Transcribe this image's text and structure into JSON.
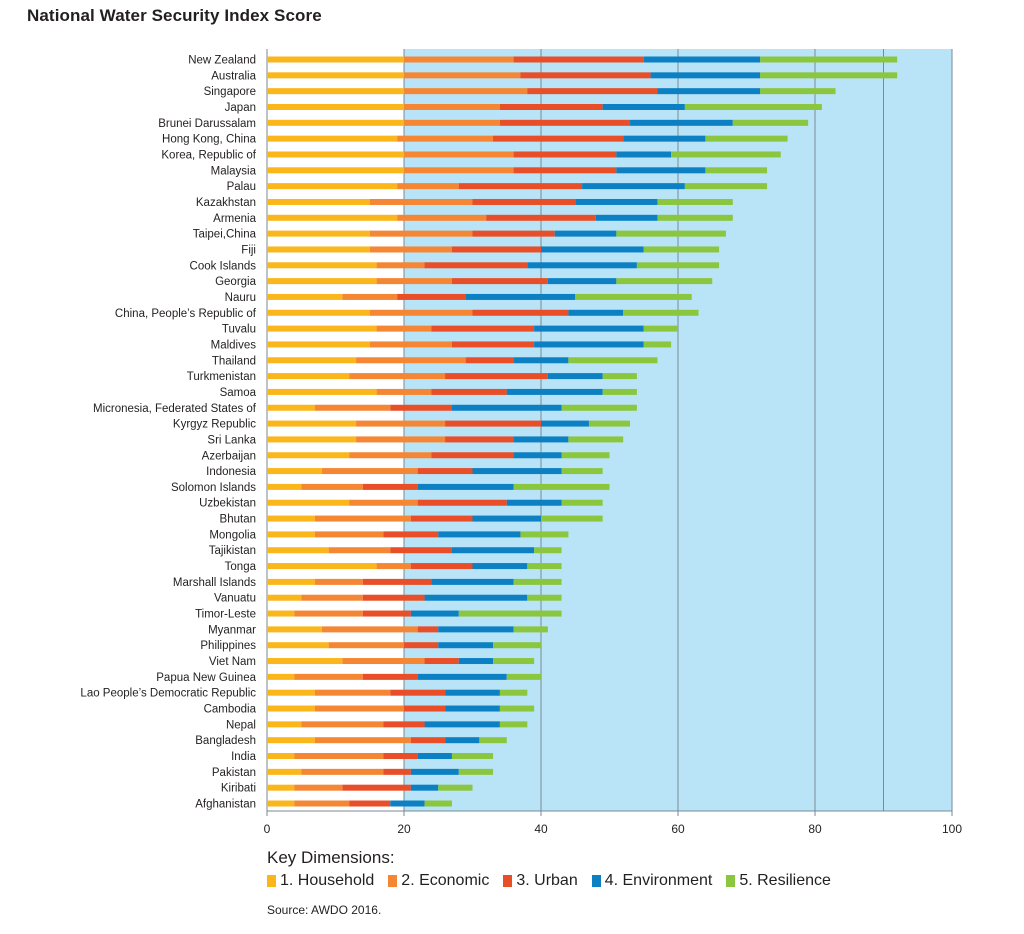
{
  "chart_data": {
    "type": "bar",
    "orientation": "horizontal",
    "stacked": true,
    "title": "National Water Security Index Score",
    "xlim": [
      0,
      100
    ],
    "x_ticks": [
      0,
      20,
      40,
      60,
      80,
      100
    ],
    "grid": true,
    "legend_title": "Key Dimensions:",
    "legend_position": "bottom",
    "source": "Source: AWDO 2016.",
    "colors": [
      "#fbb61b",
      "#f58634",
      "#e84e27",
      "#0d80c3",
      "#8bc63f"
    ],
    "plot_background": "#b9e4f7",
    "categories": [
      "New Zealand",
      "Australia",
      "Singapore",
      "Japan",
      "Brunei Darussalam",
      "Hong Kong, China",
      "Korea, Republic of",
      "Malaysia",
      "Palau",
      "Kazakhstan",
      "Armenia",
      "Taipei,China",
      "Fiji",
      "Cook Islands",
      "Georgia",
      "Nauru",
      "China, People’s Republic of",
      "Tuvalu",
      "Maldives",
      "Thailand",
      "Turkmenistan",
      "Samoa",
      "Micronesia, Federated States of",
      "Kyrgyz Republic",
      "Sri Lanka",
      "Azerbaijan",
      "Indonesia",
      "Solomon Islands",
      "Uzbekistan",
      "Bhutan",
      "Mongolia",
      "Tajikistan",
      "Tonga",
      "Marshall Islands",
      "Vanuatu",
      "Timor-Leste",
      "Myanmar",
      "Philippines",
      "Viet Nam",
      "Papua New Guinea",
      "Lao People’s Democratic Republic",
      "Cambodia",
      "Nepal",
      "Bangladesh",
      "India",
      "Pakistan",
      "Kiribati",
      "Afghanistan"
    ],
    "series": [
      {
        "name": "1. Household",
        "values": [
          20,
          20,
          20,
          20,
          20,
          19,
          20,
          20,
          19,
          15,
          19,
          15,
          15,
          16,
          16,
          11,
          15,
          16,
          15,
          13,
          12,
          16,
          7,
          13,
          13,
          12,
          8,
          5,
          12,
          7,
          7,
          9,
          16,
          7,
          5,
          4,
          8,
          9,
          11,
          4,
          7,
          7,
          5,
          7,
          4,
          5,
          4,
          4
        ]
      },
      {
        "name": "2. Economic",
        "values": [
          16,
          17,
          18,
          14,
          14,
          14,
          16,
          16,
          9,
          15,
          13,
          15,
          12,
          7,
          11,
          8,
          15,
          8,
          12,
          16,
          14,
          8,
          11,
          13,
          13,
          12,
          14,
          9,
          10,
          14,
          10,
          9,
          5,
          7,
          9,
          10,
          14,
          11,
          12,
          10,
          11,
          13,
          12,
          14,
          13,
          12,
          7,
          8
        ]
      },
      {
        "name": "3. Urban",
        "values": [
          19,
          19,
          19,
          15,
          19,
          19,
          15,
          15,
          18,
          15,
          16,
          12,
          13,
          15,
          14,
          10,
          14,
          15,
          12,
          7,
          15,
          11,
          9,
          14,
          10,
          12,
          8,
          8,
          13,
          9,
          8,
          9,
          9,
          10,
          9,
          7,
          3,
          5,
          5,
          8,
          8,
          6,
          6,
          5,
          5,
          4,
          10,
          6
        ]
      },
      {
        "name": "4. Environment",
        "values": [
          17,
          16,
          15,
          12,
          15,
          12,
          8,
          13,
          15,
          12,
          9,
          9,
          15,
          16,
          10,
          16,
          8,
          16,
          16,
          8,
          8,
          14,
          16,
          7,
          8,
          7,
          13,
          14,
          8,
          10,
          12,
          12,
          8,
          12,
          15,
          7,
          11,
          8,
          5,
          13,
          8,
          8,
          11,
          5,
          5,
          7,
          4,
          5
        ]
      },
      {
        "name": "5. Resilience",
        "values": [
          20,
          20,
          11,
          20,
          11,
          12,
          16,
          9,
          12,
          11,
          11,
          16,
          11,
          12,
          14,
          17,
          11,
          5,
          4,
          13,
          5,
          5,
          11,
          6,
          8,
          7,
          6,
          14,
          6,
          9,
          7,
          4,
          5,
          7,
          5,
          15,
          5,
          7,
          6,
          5,
          4,
          5,
          4,
          4,
          6,
          5,
          5,
          4
        ]
      }
    ]
  }
}
